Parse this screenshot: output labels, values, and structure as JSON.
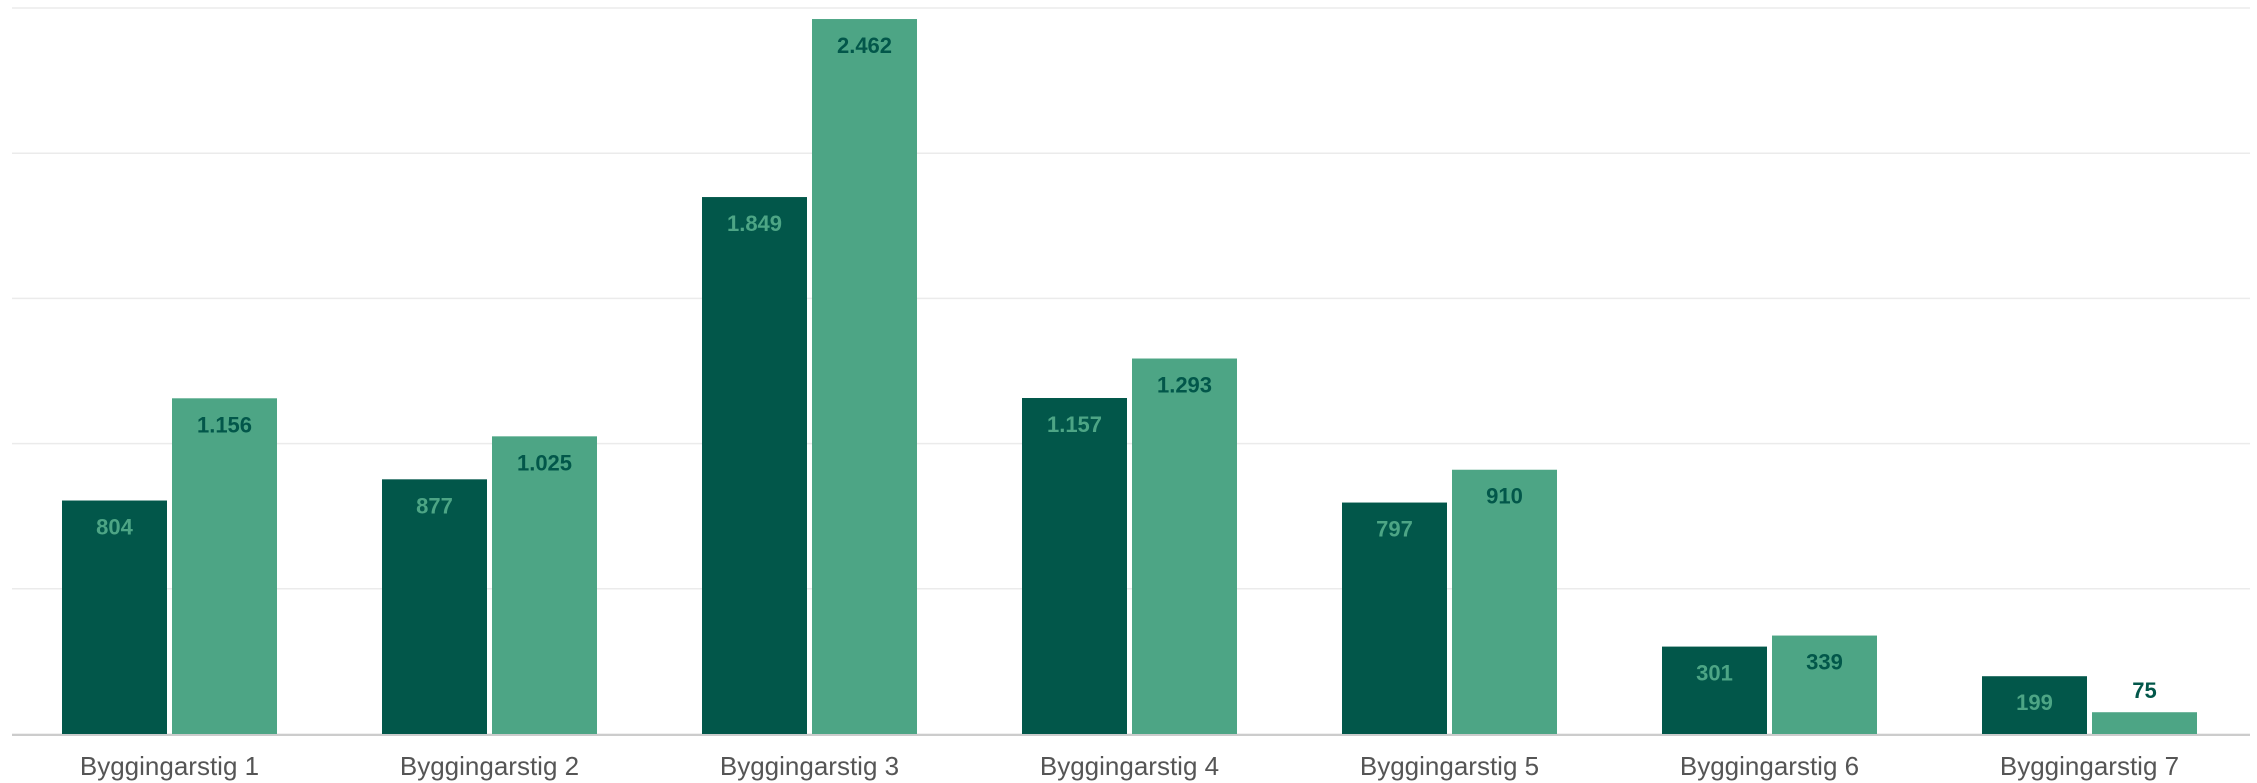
{
  "chart_data": {
    "type": "bar",
    "title": "",
    "xlabel": "",
    "ylabel": "",
    "ylim": [
      0,
      2500
    ],
    "grid": true,
    "legend": "none",
    "categories": [
      "Byggingarstig 1",
      "Byggingarstig 2",
      "Byggingarstig 3",
      "Byggingarstig 4",
      "Byggingarstig 5",
      "Byggingarstig 6",
      "Byggingarstig 7"
    ],
    "series": [
      {
        "values": [
          804,
          877,
          1849,
          1157,
          797,
          301,
          199
        ],
        "labels": [
          "804",
          "877",
          "1.849",
          "1.157",
          "797",
          "301",
          "199"
        ],
        "color": "#02574a",
        "label_color": "#4da585"
      },
      {
        "values": [
          1156,
          1025,
          2462,
          1293,
          910,
          339,
          75
        ],
        "labels": [
          "1.156",
          "1.025",
          "2.462",
          "1.293",
          "910",
          "339",
          "75"
        ],
        "color": "#4da585",
        "label_color": "#02574a"
      }
    ]
  }
}
